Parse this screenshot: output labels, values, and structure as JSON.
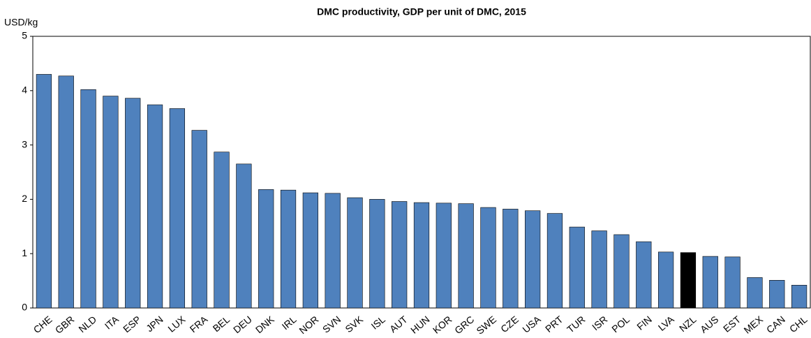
{
  "chart_data": {
    "type": "bar",
    "title": "DMC productivity, GDP per unit of DMC, 2015",
    "y_label": "USD/kg",
    "categories": [
      "CHE",
      "GBR",
      "NLD",
      "ITA",
      "ESP",
      "JPN",
      "LUX",
      "FRA",
      "BEL",
      "DEU",
      "DNK",
      "IRL",
      "NOR",
      "SVN",
      "SVK",
      "ISL",
      "AUT",
      "HUN",
      "KOR",
      "GRC",
      "SWE",
      "CZE",
      "USA",
      "PRT",
      "TUR",
      "ISR",
      "POL",
      "FIN",
      "LVA",
      "NZL",
      "AUS",
      "EST",
      "MEX",
      "CAN",
      "CHL"
    ],
    "values": [
      4.3,
      4.27,
      4.02,
      3.9,
      3.86,
      3.74,
      3.67,
      3.27,
      2.87,
      2.65,
      2.18,
      2.17,
      2.12,
      2.11,
      2.03,
      2.0,
      1.96,
      1.94,
      1.93,
      1.92,
      1.85,
      1.82,
      1.79,
      1.74,
      1.49,
      1.42,
      1.35,
      1.22,
      1.03,
      1.02,
      0.95,
      0.94,
      0.56,
      0.51,
      0.42
    ],
    "colors": [
      "#4f81bd",
      "#4f81bd",
      "#4f81bd",
      "#4f81bd",
      "#4f81bd",
      "#4f81bd",
      "#4f81bd",
      "#4f81bd",
      "#4f81bd",
      "#4f81bd",
      "#4f81bd",
      "#4f81bd",
      "#4f81bd",
      "#4f81bd",
      "#4f81bd",
      "#4f81bd",
      "#4f81bd",
      "#4f81bd",
      "#4f81bd",
      "#4f81bd",
      "#4f81bd",
      "#4f81bd",
      "#4f81bd",
      "#4f81bd",
      "#4f81bd",
      "#4f81bd",
      "#4f81bd",
      "#4f81bd",
      "#4f81bd",
      "#000000",
      "#4f81bd",
      "#4f81bd",
      "#4f81bd",
      "#4f81bd",
      "#4f81bd"
    ],
    "ylim": [
      0,
      5
    ],
    "yticks": [
      0,
      1,
      2,
      3,
      4,
      5
    ],
    "grid": false
  }
}
